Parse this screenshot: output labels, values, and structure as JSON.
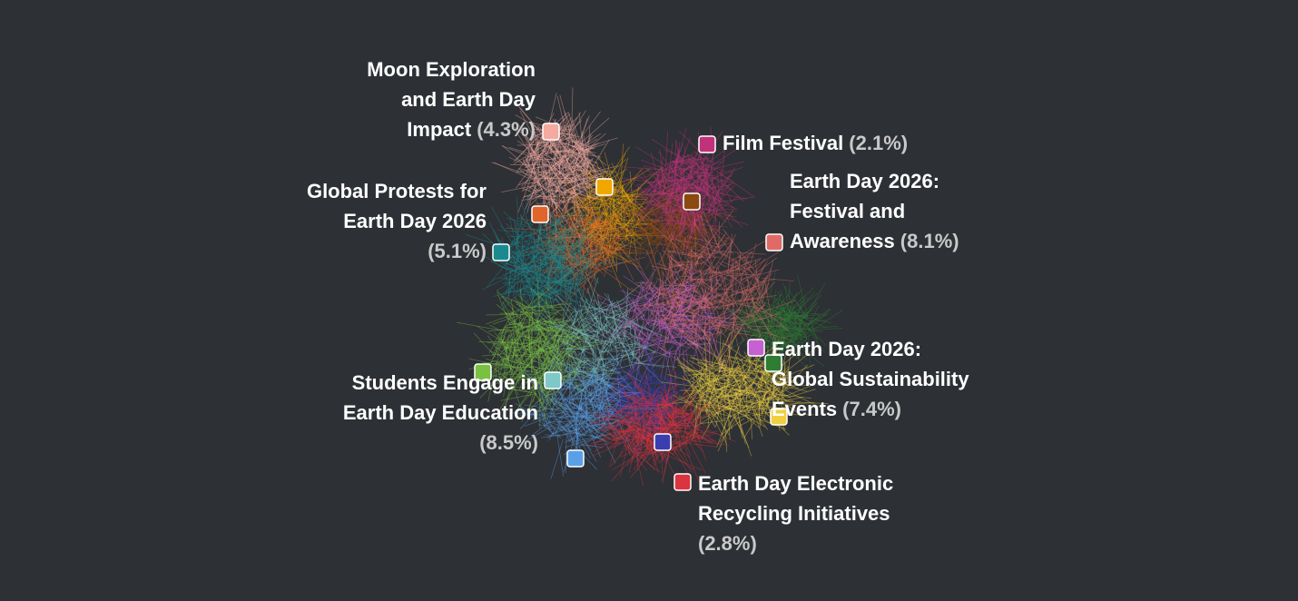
{
  "clusters": [
    {
      "lines": [
        "Moon Exploration",
        "and Earth Day",
        "Impact"
      ],
      "share": "(4.3%)",
      "color": "#f4aaa0"
    },
    {
      "lines": [
        "Film Festival"
      ],
      "share": "(2.1%)",
      "color": "#c0327a"
    },
    {
      "lines": [
        "Earth Day 2026:",
        "Festival and",
        "Awareness"
      ],
      "share": "(8.1%)",
      "color": "#e06b66"
    },
    {
      "lines": [
        "Global Protests for",
        "Earth Day 2026"
      ],
      "share": "(5.1%)",
      "color": "#1a8a8e"
    },
    {
      "lines": [
        "Earth Day 2026:",
        "Global Sustainability",
        "Events"
      ],
      "share": "(7.4%)",
      "color": "#f0d040"
    },
    {
      "lines": [
        "Students Engage in",
        "Earth Day Education"
      ],
      "share": "(8.5%)",
      "color": "#7ac142"
    },
    {
      "lines": [
        "Earth Day Electronic",
        "Recycling Initiatives"
      ],
      "share": "(2.8%)",
      "color": "#d9343f"
    }
  ],
  "other_markers": [
    {
      "color": "#f0a800"
    },
    {
      "color": "#e0652a"
    },
    {
      "color": "#8a4a10"
    },
    {
      "color": "#c561d0"
    },
    {
      "color": "#2e7d32"
    },
    {
      "color": "#7ec8c8"
    },
    {
      "color": "#3a3fb0"
    },
    {
      "color": "#5aa0e8"
    }
  ]
}
